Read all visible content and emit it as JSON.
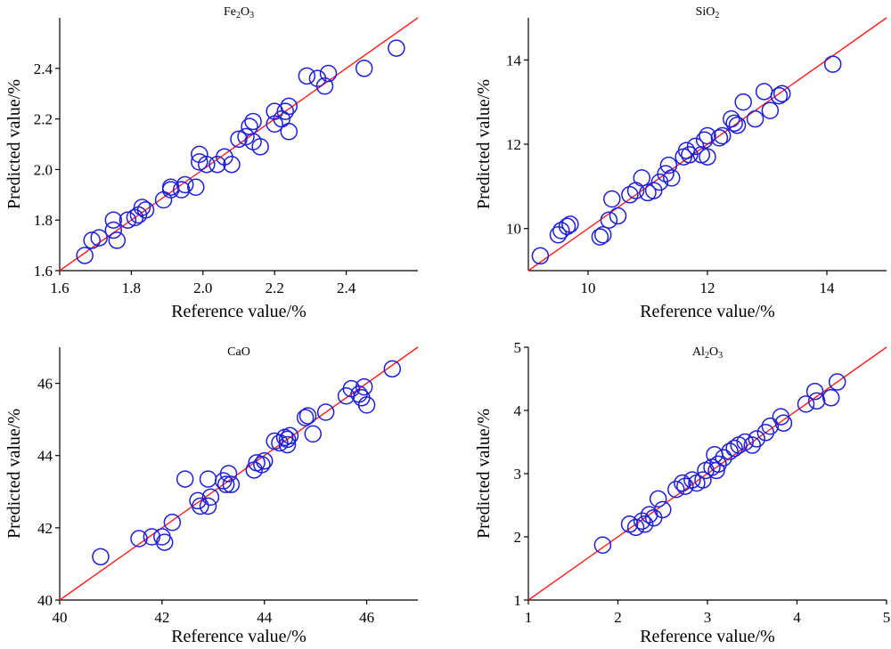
{
  "colors": {
    "points": "#1f1fd8",
    "fit_line": "#ff1e1e",
    "axes": "#000000"
  },
  "chart_data": [
    {
      "type": "scatter",
      "title": "Fe2O3",
      "title_parts": {
        "base": "Fe",
        "sub1": "2",
        "mid": "O",
        "sub2": "3"
      },
      "xlabel": "Reference value/%",
      "ylabel": "Predicted value/%",
      "xlim": [
        1.6,
        2.6
      ],
      "ylim": [
        1.6,
        2.6
      ],
      "xticks": [
        "1.6",
        "1.8",
        "2.0",
        "2.2",
        "2.4"
      ],
      "yticks": [
        "1.6",
        "1.8",
        "2.0",
        "2.2",
        "2.4"
      ],
      "fit_line": [
        [
          1.6,
          1.6
        ],
        [
          2.6,
          2.6
        ]
      ],
      "points": [
        [
          1.67,
          1.66
        ],
        [
          1.69,
          1.72
        ],
        [
          1.71,
          1.73
        ],
        [
          1.75,
          1.8
        ],
        [
          1.76,
          1.72
        ],
        [
          1.75,
          1.76
        ],
        [
          1.79,
          1.8
        ],
        [
          1.81,
          1.81
        ],
        [
          1.82,
          1.82
        ],
        [
          1.83,
          1.85
        ],
        [
          1.84,
          1.84
        ],
        [
          1.89,
          1.88
        ],
        [
          1.91,
          1.92
        ],
        [
          1.91,
          1.93
        ],
        [
          1.94,
          1.92
        ],
        [
          1.95,
          1.94
        ],
        [
          1.98,
          1.93
        ],
        [
          1.99,
          2.06
        ],
        [
          1.99,
          2.03
        ],
        [
          2.01,
          2.02
        ],
        [
          2.04,
          2.02
        ],
        [
          2.06,
          2.05
        ],
        [
          2.08,
          2.02
        ],
        [
          2.1,
          2.12
        ],
        [
          2.12,
          2.13
        ],
        [
          2.13,
          2.17
        ],
        [
          2.14,
          2.19
        ],
        [
          2.14,
          2.11
        ],
        [
          2.16,
          2.09
        ],
        [
          2.2,
          2.18
        ],
        [
          2.2,
          2.23
        ],
        [
          2.22,
          2.2
        ],
        [
          2.23,
          2.23
        ],
        [
          2.24,
          2.25
        ],
        [
          2.24,
          2.15
        ],
        [
          2.29,
          2.37
        ],
        [
          2.32,
          2.36
        ],
        [
          2.34,
          2.33
        ],
        [
          2.35,
          2.38
        ],
        [
          2.45,
          2.4
        ],
        [
          2.54,
          2.48
        ]
      ]
    },
    {
      "type": "scatter",
      "title": "SiO2",
      "title_parts": {
        "base": "SiO",
        "sub1": "2",
        "mid": "",
        "sub2": ""
      },
      "xlabel": "Reference value/%",
      "ylabel": "Predicted value/%",
      "xlim": [
        9,
        15
      ],
      "ylim": [
        9,
        15
      ],
      "xticks": [
        "10",
        "12",
        "14"
      ],
      "yticks": [
        "10",
        "12",
        "14"
      ],
      "fit_line": [
        [
          9,
          9
        ],
        [
          15,
          15
        ]
      ],
      "points": [
        [
          9.2,
          9.35
        ],
        [
          9.5,
          9.85
        ],
        [
          9.55,
          9.95
        ],
        [
          9.65,
          10.05
        ],
        [
          9.7,
          10.1
        ],
        [
          10.2,
          9.8
        ],
        [
          10.25,
          9.85
        ],
        [
          10.35,
          10.2
        ],
        [
          10.4,
          10.7
        ],
        [
          10.5,
          10.3
        ],
        [
          10.7,
          10.8
        ],
        [
          10.8,
          10.9
        ],
        [
          10.9,
          11.2
        ],
        [
          11.0,
          10.85
        ],
        [
          11.1,
          10.9
        ],
        [
          11.2,
          11.1
        ],
        [
          11.3,
          11.3
        ],
        [
          11.35,
          11.5
        ],
        [
          11.4,
          11.2
        ],
        [
          11.6,
          11.7
        ],
        [
          11.65,
          11.85
        ],
        [
          11.7,
          11.75
        ],
        [
          11.8,
          11.95
        ],
        [
          11.9,
          11.75
        ],
        [
          11.95,
          12.1
        ],
        [
          12.0,
          12.2
        ],
        [
          12.0,
          11.7
        ],
        [
          12.2,
          12.15
        ],
        [
          12.25,
          12.2
        ],
        [
          12.4,
          12.6
        ],
        [
          12.45,
          12.5
        ],
        [
          12.5,
          12.45
        ],
        [
          12.6,
          13.0
        ],
        [
          12.8,
          12.6
        ],
        [
          12.95,
          13.25
        ],
        [
          13.05,
          12.8
        ],
        [
          13.2,
          13.15
        ],
        [
          13.25,
          13.2
        ],
        [
          14.1,
          13.9
        ]
      ]
    },
    {
      "type": "scatter",
      "title": "CaO",
      "title_parts": {
        "base": "CaO",
        "sub1": "",
        "mid": "",
        "sub2": ""
      },
      "xlabel": "Reference value/%",
      "ylabel": "Predicted value/%",
      "xlim": [
        40,
        47
      ],
      "ylim": [
        40,
        47
      ],
      "xticks": [
        "40",
        "42",
        "44",
        "46"
      ],
      "yticks": [
        "40",
        "42",
        "44",
        "46"
      ],
      "fit_line": [
        [
          40,
          40
        ],
        [
          47,
          47
        ]
      ],
      "points": [
        [
          40.8,
          41.2
        ],
        [
          41.55,
          41.7
        ],
        [
          41.8,
          41.75
        ],
        [
          42.0,
          41.75
        ],
        [
          42.05,
          41.6
        ],
        [
          42.2,
          42.15
        ],
        [
          42.45,
          43.35
        ],
        [
          42.7,
          42.75
        ],
        [
          42.75,
          42.6
        ],
        [
          42.9,
          43.35
        ],
        [
          42.9,
          42.6
        ],
        [
          42.95,
          42.85
        ],
        [
          43.2,
          43.3
        ],
        [
          43.25,
          43.2
        ],
        [
          43.3,
          43.5
        ],
        [
          43.35,
          43.2
        ],
        [
          43.8,
          43.6
        ],
        [
          43.85,
          43.8
        ],
        [
          43.95,
          43.75
        ],
        [
          44.0,
          43.85
        ],
        [
          44.2,
          44.4
        ],
        [
          44.3,
          44.35
        ],
        [
          44.4,
          44.5
        ],
        [
          44.45,
          44.45
        ],
        [
          44.45,
          44.3
        ],
        [
          44.5,
          44.55
        ],
        [
          44.8,
          45.05
        ],
        [
          44.85,
          45.1
        ],
        [
          44.95,
          44.6
        ],
        [
          45.2,
          45.2
        ],
        [
          45.6,
          45.65
        ],
        [
          45.7,
          45.85
        ],
        [
          45.85,
          45.7
        ],
        [
          45.9,
          45.6
        ],
        [
          45.95,
          45.9
        ],
        [
          46.0,
          45.4
        ],
        [
          46.5,
          46.4
        ]
      ]
    },
    {
      "type": "scatter",
      "title": "Al2O3",
      "title_parts": {
        "base": "Al",
        "sub1": "2",
        "mid": "O",
        "sub2": "3"
      },
      "xlabel": "Reference value/%",
      "ylabel": "Predicted value/%",
      "xlim": [
        1,
        5
      ],
      "ylim": [
        1,
        5
      ],
      "xticks": [
        "1",
        "2",
        "3",
        "4",
        "5"
      ],
      "yticks": [
        "1",
        "2",
        "3",
        "4",
        "5"
      ],
      "fit_line": [
        [
          1,
          1
        ],
        [
          5,
          5
        ]
      ],
      "points": [
        [
          1.83,
          1.87
        ],
        [
          2.13,
          2.2
        ],
        [
          2.2,
          2.15
        ],
        [
          2.27,
          2.25
        ],
        [
          2.3,
          2.2
        ],
        [
          2.35,
          2.35
        ],
        [
          2.4,
          2.3
        ],
        [
          2.45,
          2.6
        ],
        [
          2.5,
          2.43
        ],
        [
          2.65,
          2.75
        ],
        [
          2.72,
          2.85
        ],
        [
          2.75,
          2.8
        ],
        [
          2.83,
          2.9
        ],
        [
          2.88,
          2.85
        ],
        [
          2.95,
          2.9
        ],
        [
          2.98,
          3.05
        ],
        [
          3.05,
          3.1
        ],
        [
          3.08,
          3.3
        ],
        [
          3.1,
          3.05
        ],
        [
          3.12,
          3.15
        ],
        [
          3.18,
          3.25
        ],
        [
          3.25,
          3.35
        ],
        [
          3.3,
          3.4
        ],
        [
          3.35,
          3.45
        ],
        [
          3.42,
          3.5
        ],
        [
          3.5,
          3.45
        ],
        [
          3.55,
          3.55
        ],
        [
          3.65,
          3.65
        ],
        [
          3.7,
          3.75
        ],
        [
          3.82,
          3.9
        ],
        [
          3.85,
          3.8
        ],
        [
          4.1,
          4.1
        ],
        [
          4.2,
          4.3
        ],
        [
          4.22,
          4.15
        ],
        [
          4.38,
          4.2
        ],
        [
          4.45,
          4.45
        ]
      ]
    }
  ]
}
